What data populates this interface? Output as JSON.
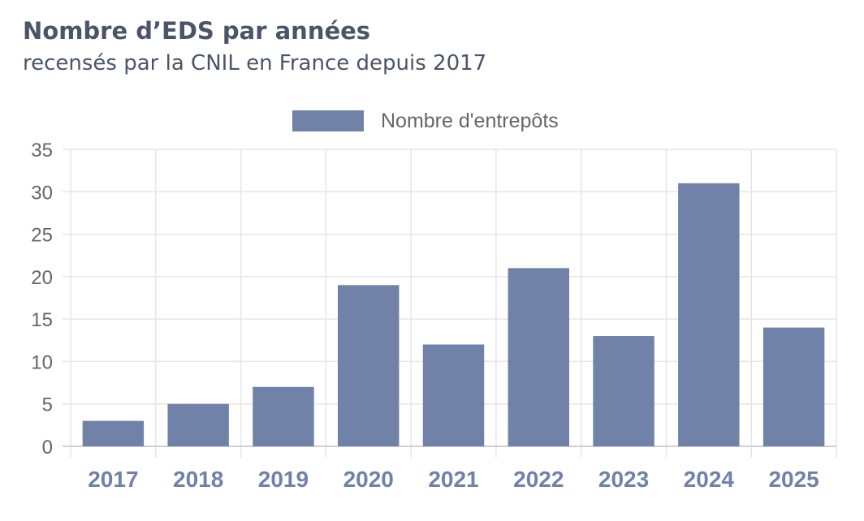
{
  "chart_data": {
    "type": "bar",
    "title": "Nombre d’EDS par années",
    "subtitle": "recensés par la CNIL en France depuis 2017",
    "categories": [
      "2017",
      "2018",
      "2019",
      "2020",
      "2021",
      "2022",
      "2023",
      "2024",
      "2025"
    ],
    "series": [
      {
        "name": "Nombre d'entrepôts",
        "values": [
          3,
          5,
          7,
          19,
          12,
          21,
          13,
          31,
          14
        ],
        "color": "#7082a8"
      }
    ],
    "ylim": [
      0,
      35
    ],
    "yticks": [
      0,
      5,
      10,
      15,
      20,
      25,
      30,
      35
    ],
    "xlabel": "",
    "ylabel": "",
    "grid": true,
    "legend_position": "top-center",
    "colors": {
      "grid": "#e6e6e6",
      "x_tick_label": "#7082a8",
      "y_tick_label": "#666666",
      "title": "#4a5568"
    }
  }
}
